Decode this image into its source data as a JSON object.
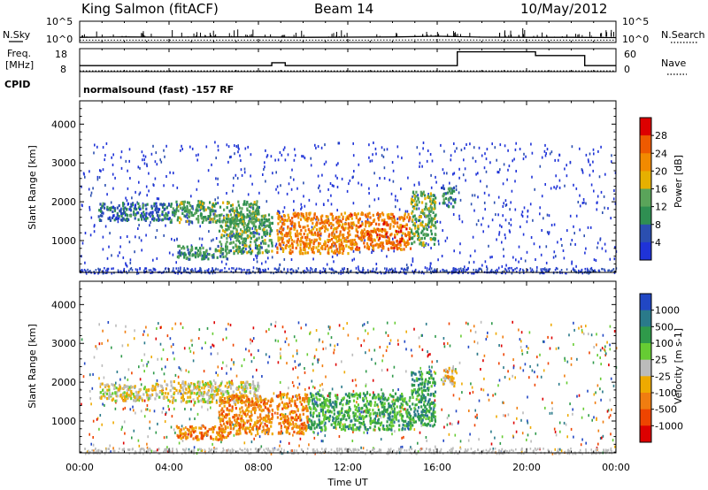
{
  "header": {
    "station": "King Salmon (fitACF)",
    "beam": "Beam 14",
    "date": "10/May/2012"
  },
  "panels": {
    "nsky": {
      "label": "N.Sky",
      "label_right": "N.Search",
      "ticks_left": [
        "10^5",
        "10^0"
      ],
      "ticks_right": [
        "10^5",
        "10^0"
      ]
    },
    "freq": {
      "label_line1": "Freq.",
      "label_line2": "[MHz]",
      "label_right": "Nave",
      "ticks_left": [
        "18",
        "8"
      ],
      "ticks_right": [
        "60",
        "0"
      ]
    },
    "cpid": {
      "label": "CPID",
      "text": "normalsound (fast) -157 RF"
    }
  },
  "colors": {
    "power_scale": [
      "#1f33d8",
      "#2b4fb0",
      "#2f8f52",
      "#5aa45a",
      "#e6b000",
      "#f28a00",
      "#ee5a00",
      "#dd0000"
    ],
    "velocity_scale": [
      "#2147c4",
      "#2a7a8a",
      "#2f9a4a",
      "#66cc33",
      "#bbbbbb",
      "#eeaa00",
      "#f07d10",
      "#ee4400",
      "#dd0000"
    ]
  },
  "chart_data": [
    {
      "type": "line",
      "name": "nsky-panel",
      "series": [
        {
          "name": "N.Sky",
          "x_hours": [
            0,
            2,
            4,
            6,
            8,
            10,
            12,
            14,
            16,
            17,
            18,
            20,
            22,
            24
          ],
          "values": [
            1.2,
            1.3,
            1.25,
            1.3,
            1.3,
            1.2,
            1.25,
            1.3,
            1.45,
            1.35,
            1.25,
            1.2,
            1.2,
            1.15
          ]
        },
        {
          "name": "N.Search",
          "x_hours": [
            0,
            4,
            8,
            12,
            16,
            20,
            24
          ],
          "values": [
            0.55,
            0.55,
            0.55,
            0.55,
            0.6,
            0.55,
            0.55
          ]
        }
      ],
      "ylim": [
        0,
        5
      ]
    },
    {
      "type": "line",
      "name": "freq-nave-panel",
      "series": [
        {
          "name": "Freq.",
          "x_hours": [
            0,
            8.6,
            8.6,
            9.2,
            9.2,
            16.9,
            16.9,
            20.4,
            20.4,
            22.6,
            22.6,
            24
          ],
          "values": [
            10.6,
            10.6,
            11.9,
            11.9,
            10.6,
            10.6,
            16.6,
            16.6,
            15,
            15,
            10.6,
            10.6
          ]
        },
        {
          "name": "Nave",
          "x_hours": [
            0,
            24
          ],
          "values": [
            2,
            2
          ]
        }
      ],
      "ylim": [
        8,
        18
      ],
      "y2lim": [
        0,
        60
      ]
    },
    {
      "type": "heatmap",
      "name": "power-panel",
      "ylabel": "Slant Range [km]",
      "colorbar_label": "Power [dB]",
      "colorbar_ticks": [
        "28",
        "24",
        "20",
        "16",
        "12",
        "8",
        "4"
      ],
      "colorbar_range": [
        0,
        32
      ],
      "ylim": [
        180,
        4600
      ],
      "xlim": [
        0,
        24
      ],
      "yticks": [
        "1000",
        "2000",
        "3000",
        "4000"
      ],
      "xticks": [
        "00:00",
        "04:00",
        "08:00",
        "12:00",
        "16:00",
        "20:00",
        "00:00"
      ],
      "regions": [
        {
          "t0": 0.8,
          "t1": 4.0,
          "r0": 1550,
          "r1": 2000,
          "level": 1.4
        },
        {
          "t0": 4.0,
          "t1": 8.0,
          "r0": 1500,
          "r1": 2050,
          "level": 2.6
        },
        {
          "t0": 4.3,
          "t1": 6.6,
          "r0": 550,
          "r1": 900,
          "level": 2.2
        },
        {
          "t0": 6.2,
          "t1": 8.6,
          "r0": 700,
          "r1": 1700,
          "level": 2.6
        },
        {
          "t0": 8.8,
          "t1": 12.0,
          "r0": 700,
          "r1": 1750,
          "level": 5.2
        },
        {
          "t0": 12.0,
          "t1": 14.8,
          "r0": 800,
          "r1": 1750,
          "level": 5.5
        },
        {
          "t0": 14.8,
          "t1": 15.9,
          "r0": 900,
          "r1": 2300,
          "level": 2.8
        },
        {
          "t0": 16.2,
          "t1": 16.8,
          "r0": 1900,
          "r1": 2400,
          "level": 1.8
        }
      ]
    },
    {
      "type": "heatmap",
      "name": "velocity-panel",
      "ylabel": "Slant Range [km]",
      "colorbar_label": "Velocity [m s-1]",
      "colorbar_ticks": [
        "1000",
        "500",
        "100",
        "25",
        "-25",
        "-100",
        "-500",
        "-1000"
      ],
      "colorbar_range": [
        -1000,
        1000
      ],
      "ylim": [
        180,
        4600
      ],
      "xlim": [
        0,
        24
      ],
      "yticks": [
        "1000",
        "2000",
        "3000",
        "4000"
      ],
      "xticks": [
        "00:00",
        "04:00",
        "08:00",
        "12:00",
        "16:00",
        "20:00",
        "00:00"
      ],
      "xlabel": "Time UT",
      "regions": [
        {
          "t0": 0.8,
          "t1": 4.0,
          "r0": 1550,
          "r1": 2000,
          "level": 4.3
        },
        {
          "t0": 4.0,
          "t1": 8.0,
          "r0": 1500,
          "r1": 2050,
          "level": 4.2
        },
        {
          "t0": 4.3,
          "t1": 6.6,
          "r0": 550,
          "r1": 900,
          "level": 5.9
        },
        {
          "t0": 6.2,
          "t1": 8.6,
          "r0": 700,
          "r1": 1700,
          "level": 5.8
        },
        {
          "t0": 8.8,
          "t1": 10.2,
          "r0": 700,
          "r1": 1750,
          "level": 6.0
        },
        {
          "t0": 10.2,
          "t1": 14.8,
          "r0": 800,
          "r1": 1750,
          "level": 2.2
        },
        {
          "t0": 14.8,
          "t1": 15.9,
          "r0": 900,
          "r1": 2300,
          "level": 2.0
        },
        {
          "t0": 16.2,
          "t1": 16.8,
          "r0": 1900,
          "r1": 2400,
          "level": 5.0
        }
      ]
    }
  ]
}
